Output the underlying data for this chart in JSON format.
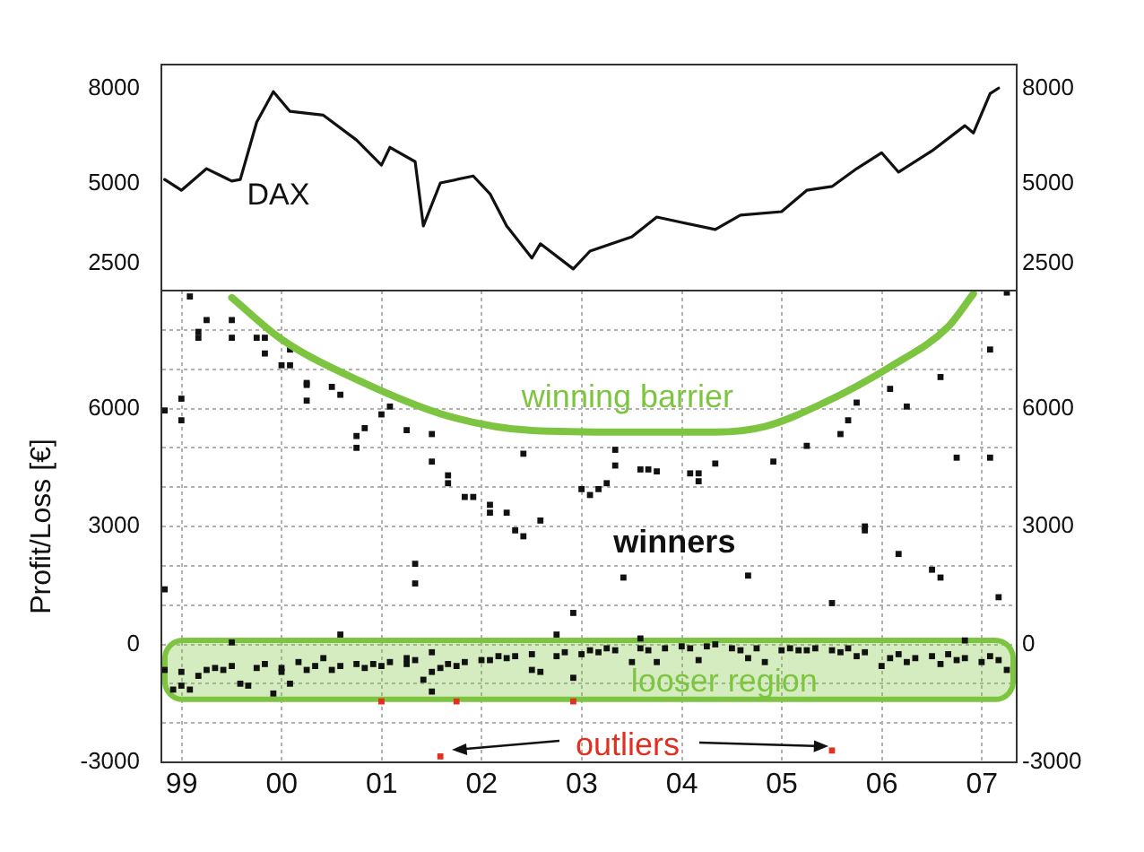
{
  "chart_data": [
    {
      "type": "line",
      "xlim": [
        "1999-04-19",
        "2007-11-06"
      ],
      "ylim": [
        1650,
        8750
      ],
      "yticks": [
        2500,
        5000,
        8000
      ],
      "y2lim": [
        1650,
        8750
      ],
      "y2ticks": [
        2500,
        5000,
        8000
      ],
      "tick_labels": "y",
      "marker": "none",
      "line_style": "solid",
      "series": [
        {
          "name": "DAX",
          "color": "#111111",
          "x": [
            "1999-05",
            "1999-07",
            "1999-10",
            "2000-01",
            "2000-02",
            "2000-04",
            "2000-06",
            "2000-08",
            "2000-12",
            "2001-04",
            "2001-07",
            "2001-08",
            "2001-11",
            "2001-12",
            "2002-02",
            "2002-06",
            "2002-08",
            "2002-10",
            "2003-01",
            "2003-02",
            "2003-06",
            "2003-08",
            "2004-01",
            "2004-04",
            "2004-07",
            "2004-11",
            "2005-02",
            "2005-07",
            "2005-10",
            "2006-01",
            "2006-04",
            "2006-07",
            "2006-09",
            "2007-01",
            "2007-05",
            "2007-06",
            "2007-08",
            "2007-09"
          ],
          "values": [
            5140,
            4800,
            5480,
            5090,
            5140,
            6940,
            7900,
            7280,
            7160,
            6380,
            5590,
            6150,
            5700,
            3680,
            5030,
            5250,
            4690,
            3680,
            2670,
            3120,
            2330,
            2890,
            3340,
            3960,
            3790,
            3570,
            4020,
            4130,
            4800,
            4920,
            5480,
            5980,
            5370,
            6040,
            6830,
            6600,
            7840,
            8010
          ]
        }
      ]
    },
    {
      "type": "scatter",
      "xlim": [
        "1999-04-19",
        "2007-11-06"
      ],
      "xticks": [
        {
          "value": "1999-07-02",
          "label": "99"
        },
        {
          "value": "2000-07-02",
          "label": "00"
        },
        {
          "value": "2001-07-02",
          "label": "01"
        },
        {
          "value": "2002-07-02",
          "label": "02"
        },
        {
          "value": "2003-07-02",
          "label": "03"
        },
        {
          "value": "2004-07-02",
          "label": "04"
        },
        {
          "value": "2005-07-02",
          "label": "05"
        },
        {
          "value": "2006-07-02",
          "label": "06"
        },
        {
          "value": "2007-07-02",
          "label": "07"
        }
      ],
      "ylim": [
        -3000,
        9000
      ],
      "yticks": [
        -3000,
        {
          "value": -2000,
          "label": null
        },
        {
          "value": -1000,
          "label": null
        },
        0,
        {
          "value": 1000,
          "label": null
        },
        {
          "value": 2000,
          "label": null
        },
        3000,
        {
          "value": 4000,
          "label": null
        },
        {
          "value": 5000,
          "label": null
        },
        6000,
        {
          "value": 7000,
          "label": null
        },
        {
          "value": 8000,
          "label": null
        }
      ],
      "y2lim": [
        -3000,
        9000
      ],
      "y2ticks": [
        -3000,
        0,
        3000,
        6000
      ],
      "ylabel": "Profit/Loss [€]",
      "grid": true,
      "marker": "square",
      "annotations": [
        "winners",
        "outliers"
      ],
      "bands": [
        {
          "axis": "y",
          "from": -1400,
          "to": 100,
          "label": "looser region",
          "color": "#7dc540"
        }
      ],
      "series": [
        {
          "name": "winning barrier",
          "type": "line",
          "marker": "none",
          "color": "#7dc540",
          "x": [
            "2000-01",
            "2000-07",
            "2001-04",
            "2002-03",
            "2003-01",
            "2003-12",
            "2004-11",
            "2005-05",
            "2005-12",
            "2006-08",
            "2007-03",
            "2007-06"
          ],
          "values": [
            8820,
            7760,
            6740,
            5810,
            5440,
            5400,
            5400,
            5540,
            6140,
            7060,
            8080,
            8920
          ]
        },
        {
          "color": "#111111",
          "x": [
            "1999-05",
            "1999-05",
            "1999-07",
            "1999-07",
            "1999-08",
            "1999-09",
            "1999-09",
            "1999-10",
            "2000-01",
            "2000-01",
            "2000-01",
            "2000-04",
            "2000-05",
            "2000-05",
            "2000-07",
            "2000-08",
            "2000-08",
            "2000-10",
            "2000-10",
            "2000-10",
            "2001-01",
            "2001-02",
            "2001-02",
            "2001-04",
            "2001-04",
            "2001-05",
            "2001-07",
            "2001-08",
            "2001-10",
            "2001-11",
            "2001-11",
            "2002-01",
            "2002-01",
            "2002-01",
            "2002-03",
            "2002-03",
            "2002-05",
            "2002-06",
            "2002-08",
            "2002-08",
            "2002-10",
            "2002-11",
            "2002-12",
            "2002-12",
            "2003-02",
            "2003-04",
            "2003-06",
            "2003-07",
            "2003-08",
            "2003-09",
            "2003-10",
            "2003-11",
            "2003-11",
            "2003-12",
            "2004-02",
            "2004-02",
            "2004-03",
            "2004-04",
            "2004-08",
            "2004-09",
            "2004-09",
            "2004-11",
            "2005-03",
            "2005-06",
            "2005-10",
            "2006-01",
            "2006-02",
            "2006-03",
            "2006-04",
            "2006-05",
            "2006-05",
            "2006-08",
            "2006-09",
            "2006-10",
            "2007-01",
            "2007-02",
            "2007-02",
            "2007-04",
            "2007-05",
            "2007-08",
            "2007-08",
            "2007-09",
            "2007-10",
            "1999-05",
            "1999-06",
            "1999-07",
            "1999-07",
            "1999-08",
            "1999-09",
            "1999-10",
            "1999-11",
            "1999-12",
            "2000-01",
            "2000-02",
            "2000-03",
            "2000-04",
            "2000-05",
            "2000-06",
            "2000-07",
            "2000-07",
            "2000-08",
            "2000-09",
            "2000-10",
            "2000-11",
            "2000-12",
            "2001-01",
            "2001-02",
            "2001-04",
            "2001-05",
            "2001-06",
            "2001-07",
            "2001-08",
            "2001-10",
            "2001-10",
            "2001-11",
            "2001-12",
            "2002-01",
            "2002-01",
            "2002-02",
            "2002-03",
            "2002-04",
            "2002-05",
            "2002-07",
            "2002-08",
            "2002-09",
            "2002-10",
            "2002-11",
            "2003-01",
            "2003-01",
            "2003-02",
            "2003-04",
            "2003-05",
            "2003-06",
            "2003-07",
            "2003-08",
            "2003-09",
            "2003-10",
            "2003-11",
            "2004-01",
            "2004-02",
            "2004-03",
            "2004-04",
            "2004-05",
            "2004-07",
            "2004-08",
            "2004-09",
            "2004-10",
            "2004-11",
            "2005-01",
            "2005-02",
            "2005-03",
            "2005-04",
            "2005-05",
            "2005-07",
            "2005-08",
            "2005-09",
            "2005-10",
            "2005-11",
            "2006-01",
            "2006-02",
            "2006-03",
            "2006-04",
            "2006-05",
            "2006-07",
            "2006-08",
            "2006-09",
            "2006-10",
            "2006-11",
            "2007-01",
            "2007-02",
            "2007-03",
            "2007-04",
            "2007-05",
            "2007-07",
            "2007-08",
            "2007-09",
            "2007-10"
          ],
          "values": [
            5950,
            1400,
            5700,
            6250,
            8850,
            7950,
            7800,
            8250,
            8250,
            7800,
            50,
            7800,
            7800,
            7400,
            7100,
            7500,
            7100,
            6650,
            6200,
            6600,
            6550,
            250,
            6350,
            5000,
            5300,
            5500,
            5850,
            6050,
            5450,
            2050,
            1550,
            -200,
            5350,
            4650,
            4300,
            4100,
            3750,
            3750,
            3550,
            3350,
            3350,
            2900,
            2750,
            4850,
            3150,
            250,
            800,
            3950,
            3800,
            3950,
            4100,
            4950,
            4550,
            1700,
            150,
            4450,
            4450,
            4400,
            4350,
            4150,
            4350,
            4600,
            1750,
            4650,
            5050,
            1050,
            5350,
            5700,
            6150,
            2900,
            3000,
            6500,
            2300,
            6050,
            1900,
            6800,
            1700,
            4750,
            100,
            4750,
            7500,
            1200,
            8950,
            -650,
            -1150,
            -700,
            -1050,
            -1150,
            -800,
            -650,
            -600,
            -650,
            -550,
            -1000,
            -1050,
            -600,
            -500,
            -1250,
            -700,
            -600,
            -1000,
            -450,
            -650,
            -550,
            -350,
            -650,
            -550,
            -500,
            -600,
            -500,
            -550,
            -450,
            -500,
            -350,
            -400,
            -900,
            -700,
            -1200,
            -600,
            -500,
            -550,
            -450,
            -400,
            -400,
            -300,
            -350,
            -300,
            -650,
            -250,
            -700,
            -300,
            -200,
            -850,
            -250,
            -150,
            -200,
            -100,
            -150,
            -450,
            -100,
            -150,
            -450,
            -100,
            -50,
            -100,
            -400,
            -50,
            0,
            -100,
            -150,
            -350,
            -100,
            -450,
            -150,
            -100,
            -150,
            -150,
            -100,
            -150,
            -200,
            -100,
            -300,
            -200,
            -550,
            -350,
            -250,
            -450,
            -350,
            -300,
            -500,
            -250,
            -400,
            -350,
            -450,
            -300,
            -400,
            -650
          ]
        },
        {
          "color": "#e03020",
          "x": [
            "2001-07",
            "2002-04",
            "2003-06",
            "2002-02",
            "2006-01"
          ],
          "values": [
            -1450,
            -1450,
            -1450,
            -2850,
            -2700
          ]
        }
      ]
    }
  ]
}
